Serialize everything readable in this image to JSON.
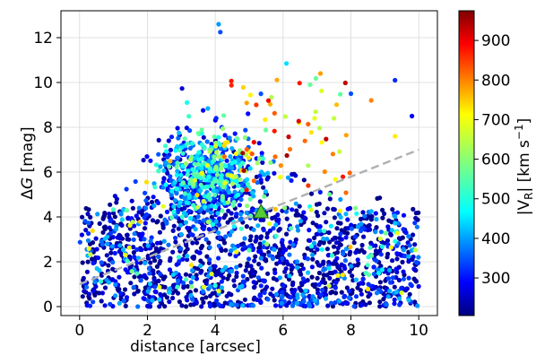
{
  "chart_data": {
    "type": "scatter",
    "title": "",
    "xlabel": "distance [arcsec]",
    "ylabel_base": "Δ",
    "ylabel_var": "G",
    "ylabel_unit": " [mag]",
    "xlim": [
      -0.55,
      10.55
    ],
    "ylim": [
      -0.4,
      13.2
    ],
    "x_ticks": [
      0,
      2,
      4,
      6,
      8,
      10
    ],
    "y_ticks": [
      0,
      2,
      4,
      6,
      8,
      10,
      12
    ],
    "grid": true,
    "colorbar": {
      "label_text": "|V",
      "label_sub": "R",
      "label_unit_pre": "| [km s",
      "label_unit_sup": "−1",
      "label_unit_post": "]",
      "colormap": "jet",
      "range": [
        205,
        975
      ],
      "ticks": [
        300,
        400,
        500,
        600,
        700,
        800,
        900
      ]
    },
    "trend_line": {
      "style": "dashed",
      "color": "#b0b0b0",
      "points": [
        [
          0,
          1.0
        ],
        [
          10,
          7.0
        ]
      ]
    },
    "highlight_marker": {
      "shape": "triangle",
      "color": "#55cc33",
      "x": 5.35,
      "y": 4.2
    },
    "series_counts": {
      "background_blue": 1150,
      "upper_cloud": 650,
      "mid_field": 420,
      "hot_points": 65
    },
    "series": [
      {
        "name": "",
        "clusters": [
          {
            "x_range": [
              0.0,
              10.0
            ],
            "y_range": [
              0.0,
              4.4
            ],
            "v_range": [
              210,
              420
            ]
          },
          {
            "x_range": [
              1.5,
              6.5
            ],
            "y_range": [
              3.0,
              10.5
            ],
            "v_range": [
              250,
              650
            ]
          },
          {
            "x_range": [
              3.0,
              6.5
            ],
            "y_range": [
              5.0,
              9.5
            ],
            "v_range": [
              450,
              650
            ]
          },
          {
            "x_range": [
              5.0,
              8.5
            ],
            "y_range": [
              5.5,
              10.0
            ],
            "v_range": [
              600,
              900
            ]
          }
        ]
      }
    ]
  }
}
